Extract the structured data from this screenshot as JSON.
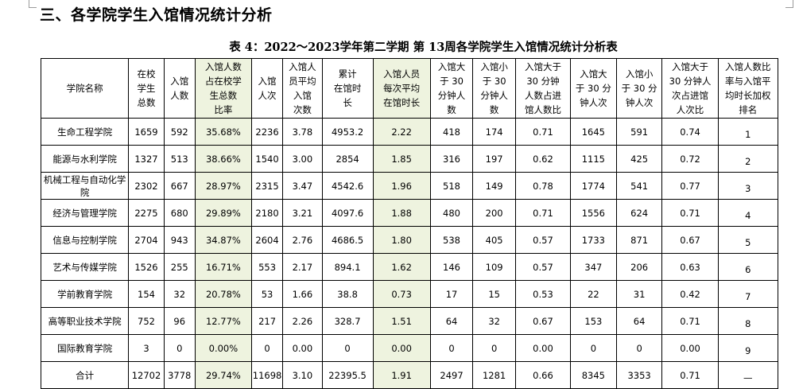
{
  "section_heading": "三、各学院学生入馆情况统计分析",
  "table_caption": "表 4：2022～2023学年第二学期 第 13周各学院学生入馆情况统计分析表",
  "columns": [
    {
      "key": "college",
      "label": "学院名称",
      "highlight": false
    },
    {
      "key": "enrolled",
      "label": "在校\n学生\n总数",
      "highlight": false
    },
    {
      "key": "visitors",
      "label": "入馆\n人数",
      "highlight": false
    },
    {
      "key": "visitor_ratio",
      "label": "入馆人数\n占在校学\n生总数\n比率",
      "highlight": true
    },
    {
      "key": "visits",
      "label": "入馆\n人次",
      "highlight": false
    },
    {
      "key": "avg_visits",
      "label": "入馆人\n员平均\n入馆\n次数",
      "highlight": false
    },
    {
      "key": "total_hours",
      "label": "累计\n在馆时\n长",
      "highlight": false
    },
    {
      "key": "avg_hours",
      "label": "入馆人员\n每次平均\n在馆时长",
      "highlight": true
    },
    {
      "key": "over30_people",
      "label": "入馆大\n于 30\n分钟人\n数",
      "highlight": false
    },
    {
      "key": "under30_people",
      "label": "入馆小\n于 30\n分钟人\n数",
      "highlight": false
    },
    {
      "key": "over30_people_ratio",
      "label": "入馆大于\n30 分钟\n人数占进\n馆人数比",
      "highlight": false
    },
    {
      "key": "over30_visits",
      "label": "入馆大\n于 30 分\n钟人次",
      "highlight": false
    },
    {
      "key": "under30_visits",
      "label": "入馆小\n于 30 分\n钟人次",
      "highlight": false
    },
    {
      "key": "over30_visits_ratio",
      "label": "入馆大于\n30 分钟人\n次占进馆\n人次比",
      "highlight": false
    },
    {
      "key": "rank",
      "label": "入馆人数比\n率与入馆平\n均时长加权\n排名",
      "highlight": false
    }
  ],
  "rows": [
    [
      "生命工程学院",
      "1659",
      "592",
      "35.68%",
      "2236",
      "3.78",
      "4953.2",
      "2.22",
      "418",
      "174",
      "0.71",
      "1645",
      "591",
      "0.74",
      "1"
    ],
    [
      "能源与水利学院",
      "1327",
      "513",
      "38.66%",
      "1540",
      "3.00",
      "2854",
      "1.85",
      "316",
      "197",
      "0.62",
      "1115",
      "425",
      "0.72",
      "2"
    ],
    [
      "机械工程与自动化学院",
      "2302",
      "667",
      "28.97%",
      "2315",
      "3.47",
      "4542.6",
      "1.96",
      "518",
      "149",
      "0.78",
      "1774",
      "541",
      "0.77",
      "3"
    ],
    [
      "经济与管理学院",
      "2275",
      "680",
      "29.89%",
      "2180",
      "3.21",
      "4097.6",
      "1.88",
      "480",
      "200",
      "0.71",
      "1556",
      "624",
      "0.71",
      "4"
    ],
    [
      "信息与控制学院",
      "2704",
      "943",
      "34.87%",
      "2604",
      "2.76",
      "4686.5",
      "1.80",
      "538",
      "405",
      "0.57",
      "1733",
      "871",
      "0.67",
      "5"
    ],
    [
      "艺术与传媒学院",
      "1526",
      "255",
      "16.71%",
      "553",
      "2.17",
      "894.1",
      "1.62",
      "146",
      "109",
      "0.57",
      "347",
      "206",
      "0.63",
      "6"
    ],
    [
      "学前教育学院",
      "154",
      "32",
      "20.78%",
      "53",
      "1.66",
      "38.8",
      "0.73",
      "17",
      "15",
      "0.53",
      "22",
      "31",
      "0.42",
      "7"
    ],
    [
      "高等职业技术学院",
      "752",
      "96",
      "12.77%",
      "217",
      "2.26",
      "328.7",
      "1.51",
      "64",
      "32",
      "0.67",
      "153",
      "64",
      "0.71",
      "8"
    ],
    [
      "国际教育学院",
      "3",
      "0",
      "0.00%",
      "0",
      "0.00",
      "0",
      "0.00",
      "0",
      "0",
      "0.00",
      "0",
      "0",
      "0.00",
      "9"
    ],
    [
      "合计",
      "12702",
      "3778",
      "29.74%",
      "11698",
      "3.10",
      "22395.5",
      "1.91",
      "2497",
      "1281",
      "0.66",
      "8345",
      "3353",
      "0.71",
      "—"
    ]
  ],
  "colors": {
    "highlight": "#eef3df",
    "border": "#000000"
  }
}
